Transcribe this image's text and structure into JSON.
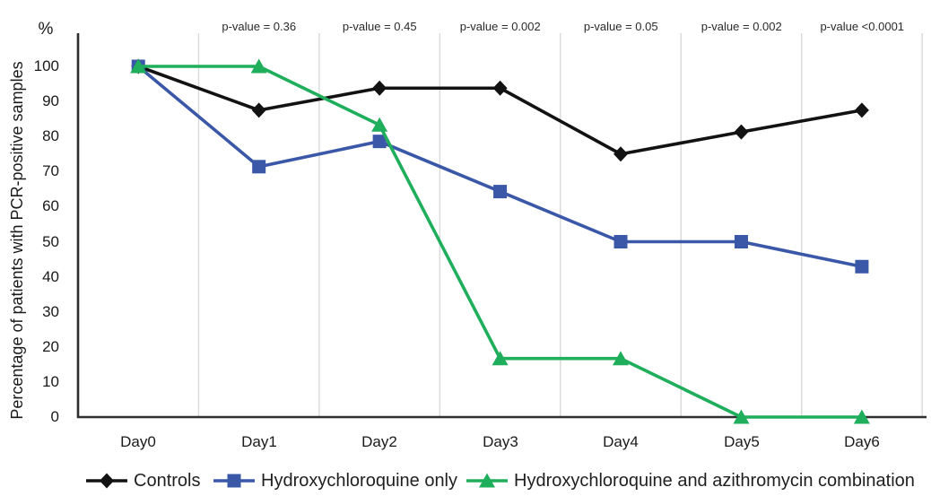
{
  "chart_data": {
    "type": "line",
    "title": "",
    "unit_label": "%",
    "ylabel": "Percentage of patients with PCR-positive samples",
    "xlabel": "",
    "categories": [
      "Day0",
      "Day1",
      "Day2",
      "Day3",
      "Day4",
      "Day5",
      "Day6"
    ],
    "y_ticks": [
      "100",
      "90",
      "80",
      "70",
      "60",
      "50",
      "40",
      "30",
      "20",
      "10",
      "0"
    ],
    "ylim": [
      0,
      100
    ],
    "grid": "vertical-only",
    "legend_position": "bottom",
    "annotations": [
      {
        "day": "Day1",
        "text": "p-value = 0.36"
      },
      {
        "day": "Day2",
        "text": "p-value = 0.45"
      },
      {
        "day": "Day3",
        "text": "p-value = 0.002"
      },
      {
        "day": "Day4",
        "text": "p-value = 0.05"
      },
      {
        "day": "Day5",
        "text": "p-value = 0.002"
      },
      {
        "day": "Day6",
        "text": "p-value <0.0001"
      }
    ],
    "series": [
      {
        "name": "Controls",
        "marker": "diamond",
        "color": "#121212",
        "values": [
          100,
          87.5,
          93.8,
          93.8,
          75,
          81.3,
          87.5
        ]
      },
      {
        "name": "Hydroxychloroquine only",
        "marker": "square",
        "color": "#3A57A8",
        "values": [
          100,
          71.4,
          78.6,
          64.3,
          50,
          50,
          42.9
        ]
      },
      {
        "name": "Hydroxychloroquine and azithromycin combination",
        "marker": "triangle",
        "color": "#1FAE5B",
        "values": [
          100,
          100,
          83.3,
          16.7,
          16.7,
          0,
          0
        ]
      }
    ],
    "colors": {
      "gridline": "#D9D9D9",
      "axis": "#2E2E2E",
      "text": "#1A1A1A",
      "background": "#FFFFFF"
    }
  }
}
